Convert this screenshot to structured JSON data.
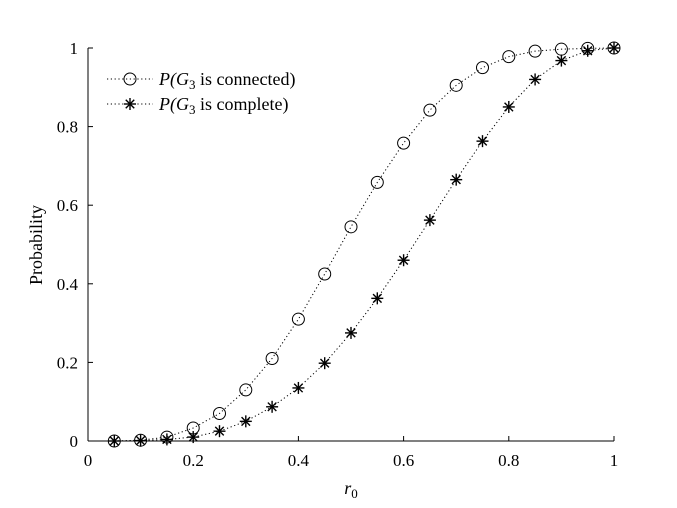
{
  "chart_data": {
    "type": "line",
    "title": "",
    "xlabel": "r",
    "xlabel_sub": "0",
    "ylabel": "Probability",
    "xlim": [
      0,
      1
    ],
    "ylim": [
      0,
      1
    ],
    "xticks": [
      "0",
      "0.2",
      "0.4",
      "0.6",
      "0.8",
      "1"
    ],
    "yticks": [
      "0",
      "0.2",
      "0.4",
      "0.6",
      "0.8",
      "1"
    ],
    "grid": false,
    "legend_position": "top-left",
    "x": [
      0.05,
      0.1,
      0.15,
      0.2,
      0.25,
      0.3,
      0.35,
      0.4,
      0.45,
      0.5,
      0.55,
      0.6,
      0.65,
      0.7,
      0.75,
      0.8,
      0.85,
      0.9,
      0.95,
      1.0
    ],
    "series": [
      {
        "legend": {
          "p": "P(",
          "g": "G",
          "sub": "3",
          "rest": " is connected)"
        },
        "marker": "circle",
        "color": "#000000",
        "values": [
          0.0,
          0.002,
          0.01,
          0.033,
          0.07,
          0.13,
          0.21,
          0.31,
          0.425,
          0.545,
          0.658,
          0.758,
          0.842,
          0.905,
          0.95,
          0.978,
          0.992,
          0.997,
          0.999,
          1.0
        ]
      },
      {
        "legend": {
          "p": "P(",
          "g": "G",
          "sub": "3",
          "rest": " is complete)"
        },
        "marker": "star",
        "color": "#000000",
        "values": [
          0.0,
          0.001,
          0.004,
          0.01,
          0.025,
          0.05,
          0.087,
          0.135,
          0.198,
          0.275,
          0.363,
          0.46,
          0.562,
          0.665,
          0.763,
          0.85,
          0.92,
          0.968,
          0.993,
          1.0
        ]
      }
    ]
  }
}
